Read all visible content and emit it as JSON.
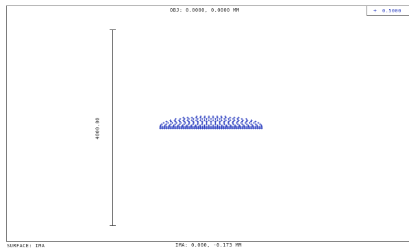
{
  "header": {
    "object_label": "OBJ: 0.0000, 0.0000 MM"
  },
  "legend": {
    "marker_symbol": "+",
    "wavelength": "0.5000",
    "color": "#2a3dbf"
  },
  "scale": {
    "label": "4000.00"
  },
  "footer": {
    "image_label": "IMA: 0.000, -0.173 MM",
    "surface_label": "SURFACE: IMA"
  },
  "spot": {
    "color": "#2a3dbf"
  }
}
